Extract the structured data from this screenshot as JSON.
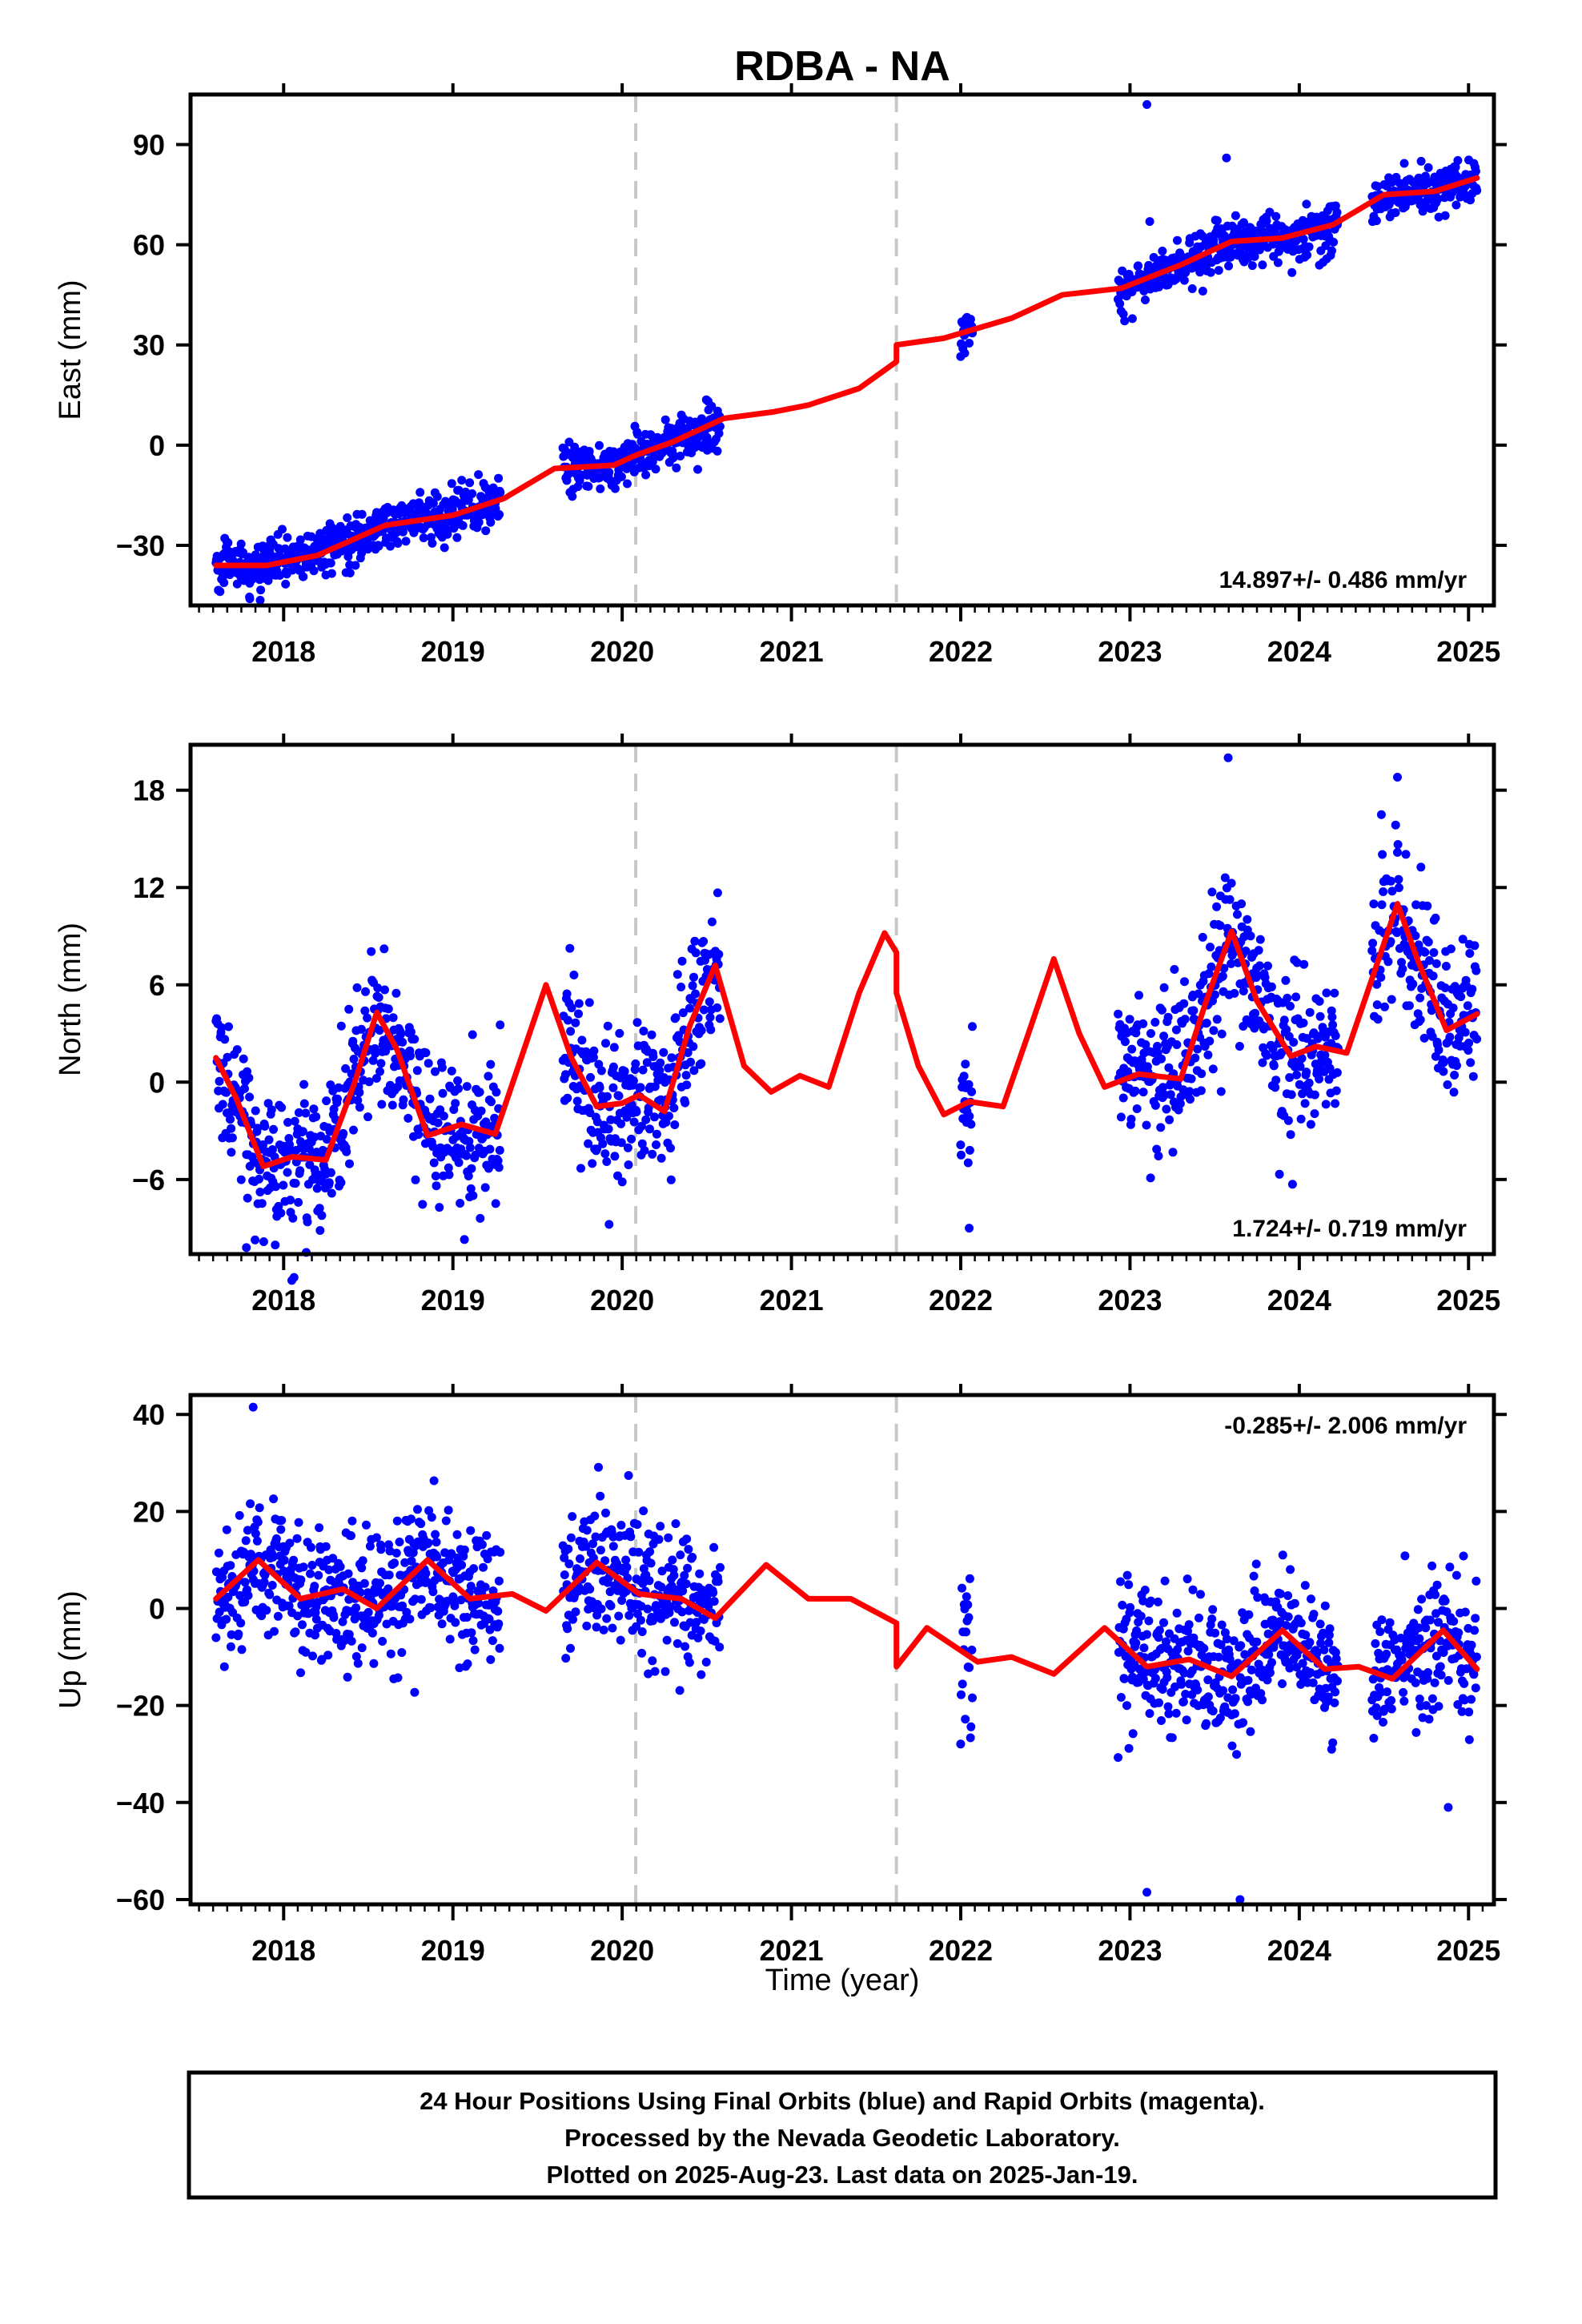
{
  "chart_data": {
    "title": "RDBA - NA",
    "xlabel": "Time (year)",
    "xlim": [
      2017.45,
      2025.15
    ],
    "x_ticks": [
      2018,
      2019,
      2020,
      2021,
      2022,
      2023,
      2024,
      2025
    ],
    "x_tick_labels": [
      "2018",
      "2019",
      "2020",
      "2021",
      "2022",
      "2023",
      "2024",
      "2025"
    ],
    "step_lines_x": [
      2020.08,
      2021.62
    ],
    "colors": {
      "points": "#0000ff",
      "model": "#ff0000",
      "step_lines": "#c8c8c8",
      "frame": "#000000"
    },
    "observation_segments": [
      [
        2017.6,
        2019.28
      ],
      [
        2019.65,
        2020.58
      ],
      [
        2022.0,
        2022.07
      ],
      [
        2022.93,
        2024.23
      ],
      [
        2024.43,
        2025.05
      ]
    ],
    "panels": [
      {
        "type": "scatter",
        "ylabel": "East (mm)",
        "ylim": [
          -48,
          105
        ],
        "y_ticks": [
          -30,
          0,
          30,
          60,
          90
        ],
        "y_tick_labels": [
          "−30",
          "0",
          "30",
          "60",
          "90"
        ],
        "rate_label": "14.897+/- 0.486 mm/yr",
        "rate_position": "bottom-right",
        "model_points": [
          [
            2017.6,
            -36
          ],
          [
            2017.9,
            -36
          ],
          [
            2018.2,
            -33
          ],
          [
            2018.6,
            -24
          ],
          [
            2019.0,
            -21
          ],
          [
            2019.3,
            -16
          ],
          [
            2019.6,
            -7
          ],
          [
            2019.95,
            -6
          ],
          [
            2020.08,
            -3
          ],
          [
            2020.3,
            1
          ],
          [
            2020.6,
            8
          ],
          [
            2020.9,
            10
          ],
          [
            2021.1,
            12
          ],
          [
            2021.4,
            17
          ],
          [
            2021.62,
            25
          ],
          [
            2021.62,
            30
          ],
          [
            2021.9,
            32
          ],
          [
            2022.3,
            38
          ],
          [
            2022.6,
            45
          ],
          [
            2022.95,
            47
          ],
          [
            2023.3,
            54
          ],
          [
            2023.6,
            61
          ],
          [
            2023.9,
            62
          ],
          [
            2024.2,
            66
          ],
          [
            2024.5,
            75
          ],
          [
            2024.8,
            76
          ],
          [
            2025.05,
            80
          ]
        ],
        "scatter_spread": 3.5,
        "outliers": [
          [
            2023.1,
            102
          ],
          [
            2023.57,
            86
          ],
          [
            2017.8,
            -46
          ],
          [
            2024.72,
            85
          ]
        ]
      },
      {
        "type": "scatter",
        "ylabel": "North (mm)",
        "ylim": [
          -10.6,
          20.8
        ],
        "y_ticks": [
          -6,
          0,
          6,
          12,
          18
        ],
        "y_tick_labels": [
          "−6",
          "0",
          "6",
          "12",
          "18"
        ],
        "rate_label": "1.724+/- 0.719 mm/yr",
        "rate_position": "bottom-right",
        "model_points": [
          [
            2017.6,
            1.5
          ],
          [
            2017.72,
            -1
          ],
          [
            2017.88,
            -5.2
          ],
          [
            2018.05,
            -4.6
          ],
          [
            2018.25,
            -4.8
          ],
          [
            2018.42,
            0
          ],
          [
            2018.55,
            4.3
          ],
          [
            2018.67,
            2
          ],
          [
            2018.85,
            -3.3
          ],
          [
            2019.05,
            -2.6
          ],
          [
            2019.25,
            -3.2
          ],
          [
            2019.42,
            2
          ],
          [
            2019.55,
            6
          ],
          [
            2019.7,
            1.5
          ],
          [
            2019.85,
            -1.5
          ],
          [
            2020.0,
            -1.3
          ],
          [
            2020.1,
            -0.8
          ],
          [
            2020.25,
            -1.8
          ],
          [
            2020.4,
            3.5
          ],
          [
            2020.55,
            7.2
          ],
          [
            2020.72,
            1
          ],
          [
            2020.88,
            -0.6
          ],
          [
            2021.05,
            0.4
          ],
          [
            2021.22,
            -0.3
          ],
          [
            2021.4,
            5.5
          ],
          [
            2021.55,
            9.2
          ],
          [
            2021.62,
            8
          ],
          [
            2021.62,
            5.5
          ],
          [
            2021.75,
            1
          ],
          [
            2021.9,
            -2
          ],
          [
            2022.05,
            -1.2
          ],
          [
            2022.25,
            -1.5
          ],
          [
            2022.4,
            3
          ],
          [
            2022.55,
            7.6
          ],
          [
            2022.7,
            3
          ],
          [
            2022.85,
            -0.3
          ],
          [
            2023.05,
            0.5
          ],
          [
            2023.3,
            0.2
          ],
          [
            2023.45,
            5
          ],
          [
            2023.6,
            9.3
          ],
          [
            2023.75,
            5
          ],
          [
            2023.95,
            1.6
          ],
          [
            2024.1,
            2.2
          ],
          [
            2024.28,
            1.8
          ],
          [
            2024.45,
            7
          ],
          [
            2024.58,
            11
          ],
          [
            2024.7,
            7.5
          ],
          [
            2024.87,
            3.2
          ],
          [
            2025.05,
            4.2
          ]
        ],
        "scatter_spread": 2.3,
        "outliers": [
          [
            2023.58,
            20
          ],
          [
            2024.58,
            18.8
          ],
          [
            2017.78,
            -10.2
          ],
          [
            2022.05,
            -9
          ]
        ]
      },
      {
        "type": "scatter",
        "ylabel": "Up (mm)",
        "ylim": [
          -61,
          44
        ],
        "y_ticks": [
          -60,
          -40,
          -20,
          0,
          20,
          40
        ],
        "y_tick_labels": [
          "−60",
          "−40",
          "−20",
          "0",
          "20",
          "40"
        ],
        "rate_label": "-0.285+/- 2.006 mm/yr",
        "rate_position": "top-right",
        "model_points": [
          [
            2017.6,
            2
          ],
          [
            2017.85,
            10
          ],
          [
            2018.1,
            2
          ],
          [
            2018.35,
            4
          ],
          [
            2018.55,
            0
          ],
          [
            2018.85,
            10
          ],
          [
            2019.1,
            2
          ],
          [
            2019.35,
            3
          ],
          [
            2019.55,
            -0.5
          ],
          [
            2019.85,
            9.5
          ],
          [
            2020.1,
            3
          ],
          [
            2020.35,
            2
          ],
          [
            2020.55,
            -2
          ],
          [
            2020.85,
            9
          ],
          [
            2021.1,
            2
          ],
          [
            2021.35,
            2
          ],
          [
            2021.62,
            -3
          ],
          [
            2021.62,
            -12
          ],
          [
            2021.8,
            -4
          ],
          [
            2022.1,
            -11
          ],
          [
            2022.3,
            -10
          ],
          [
            2022.55,
            -13.5
          ],
          [
            2022.85,
            -4
          ],
          [
            2023.1,
            -12
          ],
          [
            2023.35,
            -10.5
          ],
          [
            2023.6,
            -14
          ],
          [
            2023.9,
            -4.5
          ],
          [
            2024.15,
            -12.5
          ],
          [
            2024.35,
            -12
          ],
          [
            2024.55,
            -14.5
          ],
          [
            2024.85,
            -4.5
          ],
          [
            2025.05,
            -12.5
          ]
        ],
        "scatter_spread": 7,
        "outliers": [
          [
            2017.82,
            41.5
          ],
          [
            2023.1,
            -58.5
          ],
          [
            2023.65,
            -60
          ],
          [
            2017.65,
            -12
          ],
          [
            2024.88,
            -41
          ]
        ]
      }
    ]
  },
  "footer": {
    "line1": "24 Hour Positions Using Final Orbits (blue) and Rapid Orbits (magenta).",
    "line2": "Processed by the Nevada Geodetic Laboratory.",
    "line3": "Plotted on 2025-Aug-23. Last data on 2025-Jan-19."
  }
}
